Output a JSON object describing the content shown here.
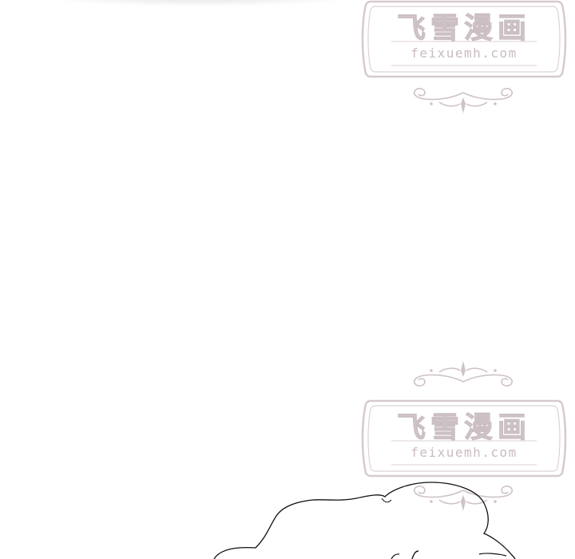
{
  "watermarks": [
    {
      "title": "飞雪漫画",
      "site": "feixuemh.com",
      "ornament_icon": "flourish-ornament-icon"
    },
    {
      "title": "飞雪漫画",
      "site": "feixuemh.com",
      "ornament_icon": "flourish-ornament-icon"
    }
  ],
  "colors": {
    "background": "#ffffff",
    "watermark": "#d4c8cc",
    "ink": "#111111"
  }
}
